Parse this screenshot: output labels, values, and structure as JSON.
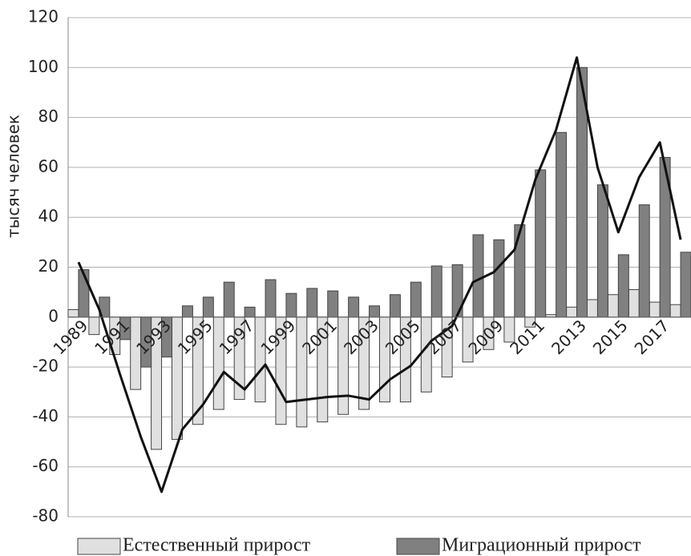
{
  "chart_data": {
    "type": "bar",
    "y_label": "тысяч человек",
    "categories": [
      "1989",
      null,
      "1991",
      null,
      "1993",
      null,
      "1995",
      null,
      "1997",
      null,
      "1999",
      null,
      "2001",
      null,
      "2003",
      null,
      "2005",
      null,
      "2007",
      null,
      "2009",
      null,
      "2011",
      null,
      "2013",
      null,
      "2015",
      null,
      "2017",
      null
    ],
    "series": [
      {
        "name": "Естественный прирост",
        "color": "#e0e0e0",
        "values": [
          3,
          -7,
          -15,
          -29,
          -53,
          -49,
          -43,
          -37,
          -33,
          -34,
          -43,
          -44,
          -42,
          -39,
          -37,
          -34,
          -34,
          -30,
          -24,
          -18,
          -13,
          -10,
          -4,
          1,
          4,
          7,
          9,
          11,
          6,
          5
        ]
      },
      {
        "name": "Миграционный прирост",
        "color": "#808080",
        "values": [
          19,
          8,
          -9,
          -20,
          -16,
          4.5,
          8,
          14,
          4,
          15,
          9.5,
          11.5,
          10.5,
          8,
          4.5,
          9,
          14,
          20.5,
          21,
          33,
          31,
          37,
          59,
          74,
          100,
          53,
          25,
          45,
          64,
          26
        ]
      },
      {
        "type": "line",
        "color": "#111111",
        "values": [
          22,
          3,
          -23,
          -48,
          -70,
          -45,
          -35,
          -22,
          -29,
          -19,
          -34,
          -33,
          -32,
          -31.5,
          -33,
          -25,
          -19.5,
          -9.5,
          -3.5,
          14,
          18,
          27,
          55,
          75,
          104,
          60,
          34,
          56,
          70,
          31
        ]
      }
    ],
    "ylim": [
      -80,
      120
    ],
    "yticks": [
      -80,
      -60,
      -40,
      -20,
      0,
      20,
      40,
      60,
      80,
      100,
      120
    ],
    "grid": true
  }
}
